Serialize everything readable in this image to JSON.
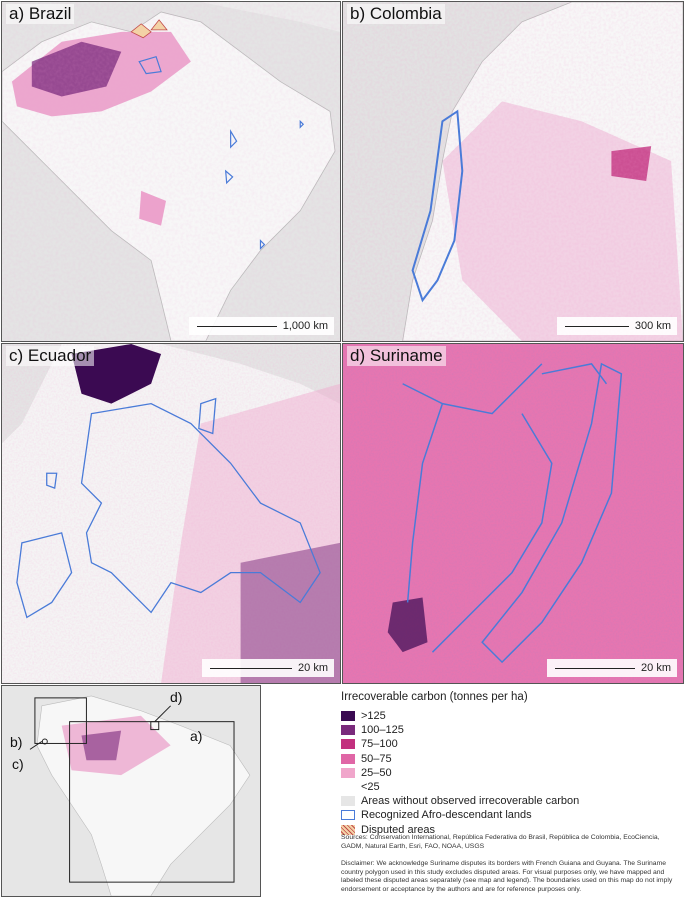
{
  "panels": {
    "a": {
      "label": "a) Brazil",
      "scale": "1,000 km"
    },
    "b": {
      "label": "b) Colombia",
      "scale": "300 km"
    },
    "c": {
      "label": "c) Ecuador",
      "scale": "20 km"
    },
    "d": {
      "label": "d) Suriname",
      "scale": "20 km"
    }
  },
  "inset": {
    "labels": {
      "a": "a)",
      "b": "b)",
      "c": "c)",
      "d": "d)"
    }
  },
  "legend": {
    "title": "Irrecoverable carbon (tonnes per ha)",
    "classes": [
      {
        "label": ">125",
        "color": "#3b0a52"
      },
      {
        "label": "100–125",
        "color": "#7a2a7c"
      },
      {
        "label": "75–100",
        "color": "#c2307e"
      },
      {
        "label": "50–75",
        "color": "#e066a6"
      },
      {
        "label": "25–50",
        "color": "#f0a6cb"
      },
      {
        "label": "<25",
        "color": "#ffffff"
      }
    ],
    "no_data": {
      "label": "Areas without observed irrecoverable carbon",
      "color": "#e6e6e6"
    },
    "afro": {
      "label": "Recognized Afro-descendant lands",
      "color": "#4a7bd8"
    },
    "disputed": {
      "label": "Disputed areas",
      "color": "#c24a4a"
    }
  },
  "sources": "Sources: Conservation International, República Federativa do Brasil, República de Colombia, EcoCiencia, GADM, Natural Earth, Esri, FAO, NOAA, USGS",
  "disclaimer": "Disclaimer: We acknowledge Suriname disputes its borders with French Guiana and Guyana. The Suriname country polygon used in this study excludes disputed areas. For visual purposes only, we have mapped and labeled these disputed areas separately (see map and legend). The boundaries used on this map do not imply endorsement or acceptance by the authors and are for reference purposes only.",
  "colors": {
    "ocean": "#e9e9e9",
    "land": "#f7f7f7",
    "boundary": "#4a7bd8"
  }
}
